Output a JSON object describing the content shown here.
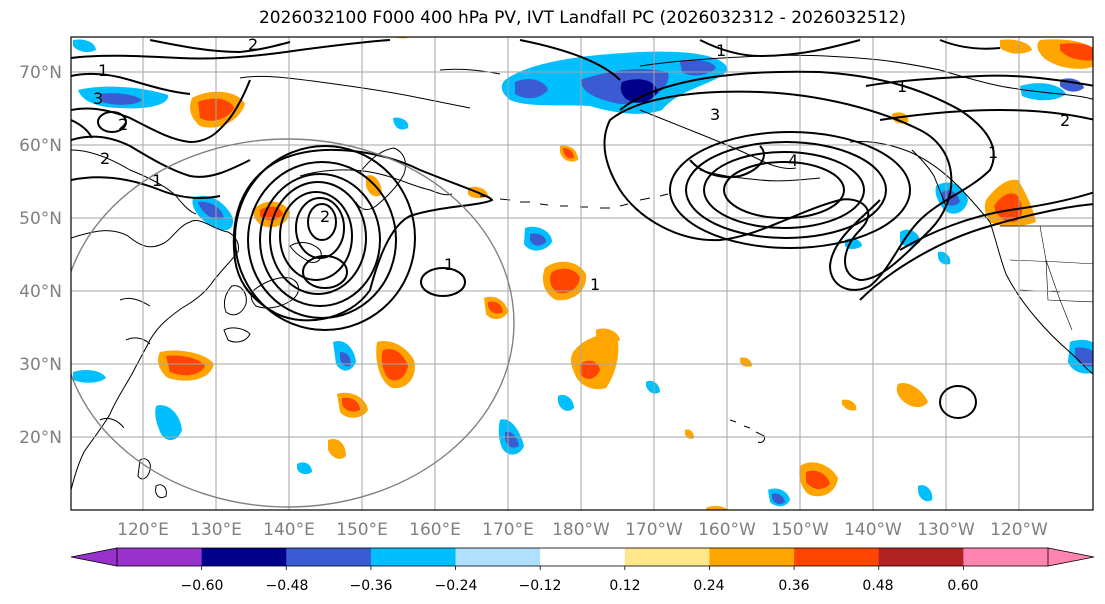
{
  "title": "2026032100 F000 400 hPa PV, IVT Landfall PC (2026032312 - 2026032512)",
  "lat_labels": [
    "70°N",
    "60°N",
    "50°N",
    "40°N",
    "30°N",
    "20°N"
  ],
  "lon_labels": [
    "120°E",
    "130°E",
    "140°E",
    "150°E",
    "160°E",
    "170°E",
    "180°W",
    "170°W",
    "160°W",
    "150°W",
    "140°W",
    "130°W",
    "120°W"
  ],
  "colorbar": {
    "colors": [
      "#9932cc",
      "#00008b",
      "#3a5bd1",
      "#00bfff",
      "#b0e0ff",
      "#ffffff",
      "#ffe68a",
      "#ffa500",
      "#ff4500",
      "#b22222",
      "#ff85b0"
    ],
    "tick_labels": [
      "−0.60",
      "−0.48",
      "−0.36",
      "−0.24",
      "−0.12",
      "0.12",
      "0.24",
      "0.36",
      "0.48",
      "0.60"
    ]
  },
  "contour_labels": [
    "1",
    "2",
    "3",
    "2",
    "2",
    "1",
    "1",
    "2",
    "4",
    "3",
    "1",
    "1",
    "1",
    "2",
    "1"
  ]
}
